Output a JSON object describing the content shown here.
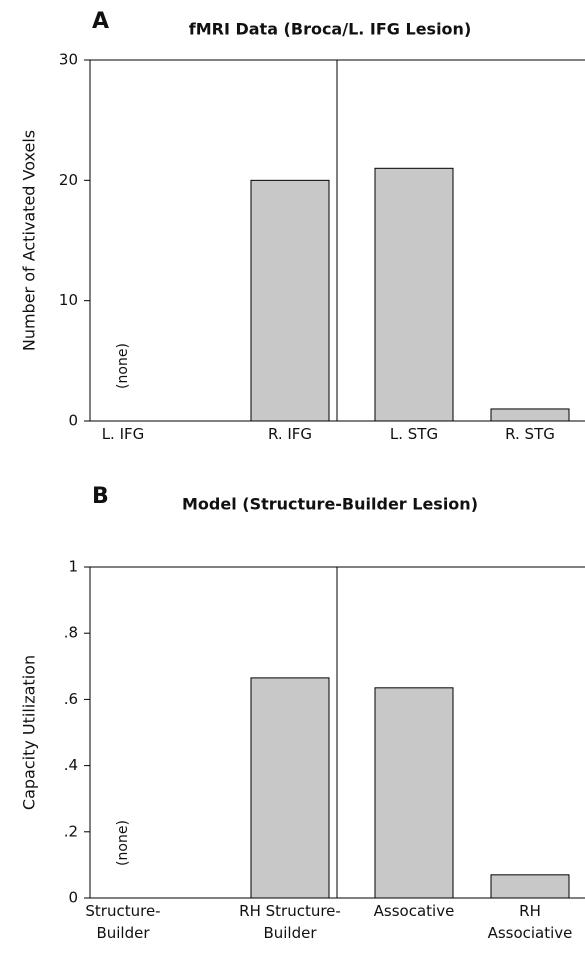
{
  "chart_data": [
    {
      "type": "bar",
      "panel": "A",
      "title": "fMRI Data (Broca/L. IFG Lesion)",
      "ylabel": "Number of Activated Voxels",
      "categories": [
        "L. IFG",
        "R. IFG",
        "L. STG",
        "R. STG"
      ],
      "values": [
        0,
        20,
        21,
        1
      ],
      "color": "#c8c8c8",
      "annotation": "(none)",
      "ylim": [
        0,
        30
      ],
      "yticks": [
        0,
        10,
        20,
        30
      ]
    },
    {
      "type": "bar",
      "panel": "B",
      "title": "Model (Structure-Builder Lesion)",
      "ylabel": "Capacity Utilization",
      "categories": [
        "Structure-\nBuilder",
        "RH Structure-\nBuilder",
        "Assocative",
        "RH\nAssociative"
      ],
      "values": [
        0,
        0.665,
        0.635,
        0.07
      ],
      "color": "#c8c8c8",
      "annotation": "(none)",
      "ylim": [
        0,
        1
      ],
      "yticks": [
        0,
        {
          "value": 0.2,
          "label": ".2"
        },
        {
          "value": 0.4,
          "label": ".4"
        },
        {
          "value": 0.6,
          "label": ".6"
        },
        {
          "value": 0.8,
          "label": ".8"
        },
        1
      ]
    }
  ]
}
